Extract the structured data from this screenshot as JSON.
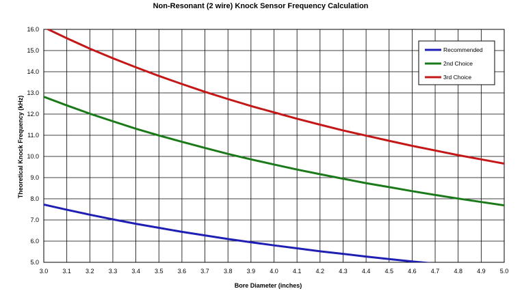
{
  "chart_data": {
    "type": "line",
    "title": "Non-Resonant (2 wire) Knock Sensor Frequency Calculation",
    "xlabel": "Bore Diameter  (inches)",
    "ylabel": "Theoretical Knock Frequency (kHz)",
    "xlim": [
      3.0,
      5.0
    ],
    "ylim": [
      5.0,
      16.0
    ],
    "x_ticks": [
      "3.0",
      "3.1",
      "3.2",
      "3.3",
      "3.4",
      "3.5",
      "3.6",
      "3.7",
      "3.8",
      "3.9",
      "4.0",
      "4.1",
      "4.2",
      "4.3",
      "4.4",
      "4.5",
      "4.6",
      "4.7",
      "4.8",
      "4.9",
      "5.0"
    ],
    "y_ticks": [
      "5.0",
      "6.0",
      "7.0",
      "8.0",
      "9.0",
      "10.0",
      "11.0",
      "12.0",
      "13.0",
      "14.0",
      "15.0",
      "16.0"
    ],
    "grid": true,
    "legend_position": "top-right",
    "series": [
      {
        "name": "Recommended",
        "color": "#1f1fb4",
        "x": [
          3.0,
          3.1,
          3.2,
          3.3,
          3.4,
          3.5,
          3.6,
          3.7,
          3.8,
          3.9,
          4.0,
          4.1,
          4.2,
          4.3,
          4.4,
          4.5,
          4.6,
          4.7
        ],
        "y": [
          7.73,
          7.48,
          7.25,
          7.03,
          6.82,
          6.63,
          6.44,
          6.27,
          6.1,
          5.95,
          5.8,
          5.66,
          5.52,
          5.4,
          5.27,
          5.15,
          5.04,
          4.94
        ]
      },
      {
        "name": "2nd Choice",
        "color": "#1a7a1a",
        "x": [
          3.0,
          3.1,
          3.2,
          3.3,
          3.4,
          3.5,
          3.6,
          3.7,
          3.8,
          3.9,
          4.0,
          4.1,
          4.2,
          4.3,
          4.4,
          4.5,
          4.6,
          4.7,
          4.8,
          4.9,
          5.0
        ],
        "y": [
          12.82,
          12.41,
          12.02,
          11.66,
          11.31,
          10.99,
          10.69,
          10.4,
          10.12,
          9.86,
          9.62,
          9.38,
          9.16,
          8.95,
          8.74,
          8.55,
          8.36,
          8.18,
          8.01,
          7.85,
          7.69
        ]
      },
      {
        "name": "3rd Choice",
        "color": "#c41818",
        "x": [
          3.0,
          3.1,
          3.2,
          3.3,
          3.4,
          3.5,
          3.6,
          3.7,
          3.8,
          3.9,
          4.0,
          4.1,
          4.2,
          4.3,
          4.4,
          4.5,
          4.6,
          4.7,
          4.8,
          4.9,
          5.0
        ],
        "y": [
          16.1,
          15.58,
          15.09,
          14.64,
          14.21,
          13.8,
          13.42,
          13.05,
          12.71,
          12.38,
          12.08,
          11.78,
          11.5,
          11.23,
          10.98,
          10.74,
          10.5,
          10.28,
          10.06,
          9.86,
          9.66
        ]
      }
    ]
  }
}
